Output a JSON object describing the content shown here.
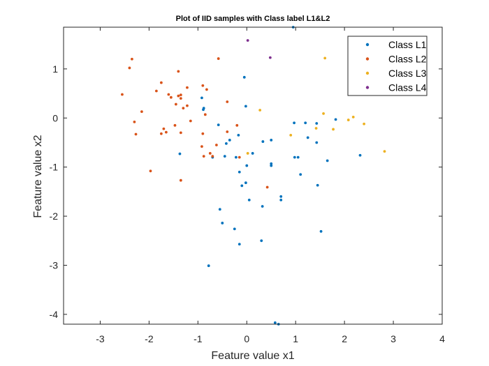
{
  "chart_data": {
    "type": "scatter",
    "title": "Plot of IID samples with Class label L1&L2",
    "xlabel": "Feature value x1",
    "ylabel": "Feature value x2",
    "xlim": [
      -3.75,
      4
    ],
    "ylim": [
      -4.2,
      1.85
    ],
    "xticks": [
      -3,
      -2,
      -1,
      0,
      1,
      2,
      3,
      4
    ],
    "yticks": [
      -4,
      -3,
      -2,
      -1,
      0,
      1
    ],
    "grid": false,
    "legend_position": "top-right",
    "series": [
      {
        "name": "Class L1",
        "color": "#0072BD",
        "points": [
          [
            0.95,
            1.85
          ],
          [
            -0.05,
            0.83
          ],
          [
            -0.02,
            0.24
          ],
          [
            -0.92,
            0.41
          ],
          [
            -0.88,
            0.2
          ],
          [
            -0.89,
            0.17
          ],
          [
            -0.58,
            -0.14
          ],
          [
            -0.17,
            -0.35
          ],
          [
            -1.37,
            -0.73
          ],
          [
            -0.7,
            -0.8
          ],
          [
            -0.45,
            -0.78
          ],
          [
            -0.42,
            -0.52
          ],
          [
            -0.35,
            -0.45
          ],
          [
            -0.22,
            -0.8
          ],
          [
            0.12,
            -0.72
          ],
          [
            0.33,
            -0.48
          ],
          [
            0.5,
            -0.45
          ],
          [
            0.5,
            -0.93
          ],
          [
            0.5,
            -0.97
          ],
          [
            0.0,
            -0.97
          ],
          [
            -0.15,
            -1.1
          ],
          [
            -0.1,
            -1.38
          ],
          [
            -0.02,
            -1.32
          ],
          [
            0.05,
            -1.67
          ],
          [
            0.32,
            -1.8
          ],
          [
            0.7,
            -1.6
          ],
          [
            0.7,
            -1.67
          ],
          [
            -0.55,
            -1.86
          ],
          [
            -0.5,
            -2.14
          ],
          [
            -0.25,
            -2.26
          ],
          [
            0.3,
            -2.5
          ],
          [
            -0.15,
            -2.57
          ],
          [
            -0.78,
            -3.01
          ],
          [
            0.58,
            -4.17
          ],
          [
            0.65,
            -4.2
          ],
          [
            0.97,
            -0.1
          ],
          [
            1.2,
            -0.1
          ],
          [
            1.43,
            -0.11
          ],
          [
            1.82,
            -0.03
          ],
          [
            0.98,
            -0.8
          ],
          [
            1.05,
            -0.8
          ],
          [
            1.1,
            -1.15
          ],
          [
            1.43,
            -0.5
          ],
          [
            1.65,
            -0.87
          ],
          [
            1.45,
            -1.37
          ],
          [
            1.52,
            -2.31
          ],
          [
            2.32,
            -0.76
          ],
          [
            1.25,
            -0.4
          ]
        ]
      },
      {
        "name": "Class L2",
        "color": "#D95319",
        "points": [
          [
            -2.35,
            1.2
          ],
          [
            -2.4,
            1.02
          ],
          [
            -2.55,
            0.48
          ],
          [
            -2.3,
            -0.08
          ],
          [
            -2.27,
            -0.33
          ],
          [
            -2.15,
            0.13
          ],
          [
            -1.97,
            -1.08
          ],
          [
            -1.85,
            0.55
          ],
          [
            -1.75,
            0.72
          ],
          [
            -1.6,
            0.48
          ],
          [
            -1.55,
            0.42
          ],
          [
            -1.7,
            -0.22
          ],
          [
            -1.75,
            -0.32
          ],
          [
            -1.65,
            -0.29
          ],
          [
            -1.4,
            0.95
          ],
          [
            -1.4,
            0.45
          ],
          [
            -1.35,
            0.47
          ],
          [
            -1.35,
            0.4
          ],
          [
            -1.3,
            0.2
          ],
          [
            -1.22,
            0.62
          ],
          [
            -1.22,
            0.25
          ],
          [
            -1.45,
            0.28
          ],
          [
            -1.47,
            -0.15
          ],
          [
            -1.35,
            -0.3
          ],
          [
            -1.35,
            -1.27
          ],
          [
            -1.15,
            -0.06
          ],
          [
            -0.9,
            0.66
          ],
          [
            -0.82,
            0.58
          ],
          [
            -0.85,
            0.07
          ],
          [
            -0.9,
            -0.32
          ],
          [
            -0.92,
            -0.58
          ],
          [
            -0.88,
            -0.78
          ],
          [
            -0.75,
            -0.72
          ],
          [
            -0.7,
            -0.78
          ],
          [
            -0.62,
            -0.55
          ],
          [
            -0.58,
            1.21
          ],
          [
            -0.4,
            0.33
          ],
          [
            -0.4,
            -0.28
          ],
          [
            -0.2,
            -0.15
          ],
          [
            -0.15,
            -0.8
          ],
          [
            0.42,
            -1.41
          ]
        ]
      },
      {
        "name": "Class L3",
        "color": "#EDB120",
        "points": [
          [
            1.6,
            1.22
          ],
          [
            0.27,
            0.16
          ],
          [
            1.57,
            0.09
          ],
          [
            2.18,
            0.02
          ],
          [
            2.08,
            -0.04
          ],
          [
            2.4,
            -0.12
          ],
          [
            1.42,
            -0.21
          ],
          [
            1.77,
            -0.23
          ],
          [
            0.9,
            -0.35
          ],
          [
            0.02,
            -0.72
          ],
          [
            2.82,
            -0.68
          ]
        ]
      },
      {
        "name": "Class L4",
        "color": "#7E2F8E",
        "points": [
          [
            0.02,
            1.58
          ],
          [
            0.48,
            1.23
          ]
        ]
      }
    ]
  }
}
